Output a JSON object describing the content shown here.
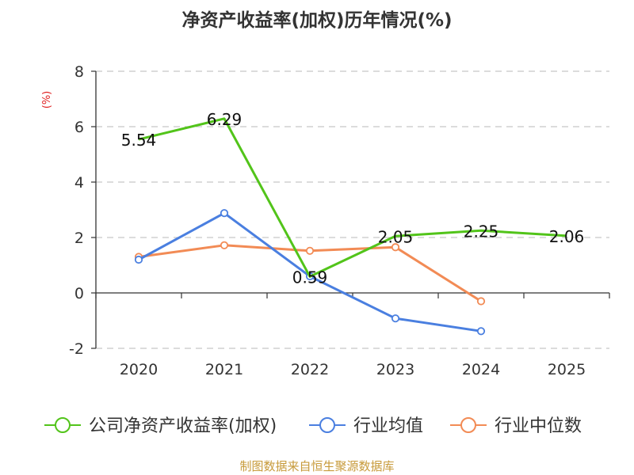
{
  "chart_data": {
    "type": "line",
    "title": "净资产收益率(加权)历年情况(%)",
    "ylabel": "(%)",
    "xlabel": "",
    "categories": [
      "2020",
      "2021",
      "2022",
      "2023",
      "2024",
      "2025"
    ],
    "ylim": [
      -2,
      8
    ],
    "yticks": [
      -2,
      0,
      2,
      4,
      6,
      8
    ],
    "grid": true,
    "legend_position": "bottom",
    "series": [
      {
        "name": "公司净资产收益率(加权)",
        "color": "#52c41a",
        "values": [
          5.54,
          6.29,
          0.59,
          2.05,
          2.25,
          2.06
        ],
        "labels": [
          "5.54",
          "6.29",
          "0.59",
          "2.05",
          "2.25",
          "2.06"
        ],
        "show_markers": false
      },
      {
        "name": "行业均值",
        "color": "#4a7fe0",
        "values": [
          1.2,
          2.88,
          0.6,
          -0.92,
          -1.38,
          null
        ],
        "show_markers": true
      },
      {
        "name": "行业中位数",
        "color": "#f28b55",
        "values": [
          1.3,
          1.72,
          1.52,
          1.65,
          -0.3,
          null
        ],
        "show_markers": true
      }
    ],
    "source": "制图数据来自恒生聚源数据库",
    "source_color": "#c79a3a"
  }
}
